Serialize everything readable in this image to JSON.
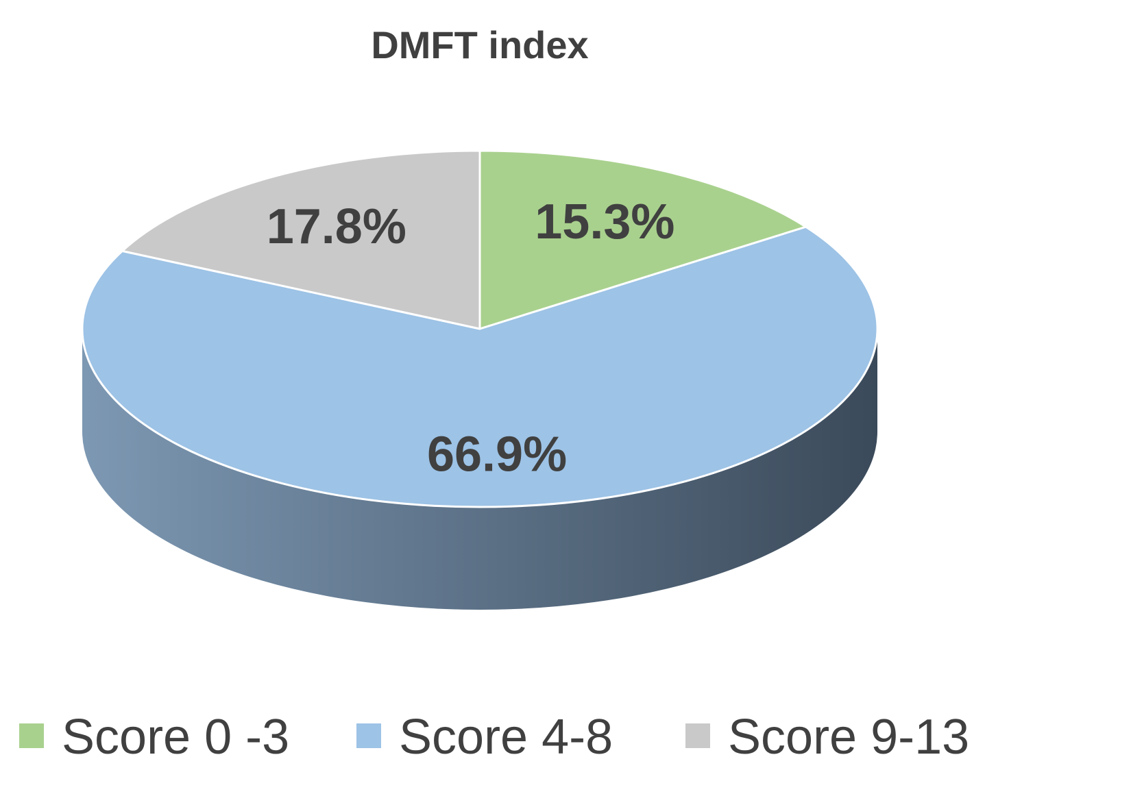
{
  "chart_data": {
    "type": "pie",
    "title": "DMFT index",
    "unit": "%",
    "categories": [
      "Score 0 -3",
      "Score 4-8",
      "Score 9-13"
    ],
    "values": [
      15.3,
      66.9,
      17.8
    ],
    "value_labels": [
      "15.3%",
      "66.9%",
      "17.8%"
    ],
    "colors": [
      "#a9d18e",
      "#9dc3e6",
      "#c9c9c9"
    ],
    "side_colors": {
      "dark": "#3b4a5a",
      "light": "#7d98b3"
    },
    "start_angle_deg": 0,
    "direction": "clockwise",
    "three_d": true,
    "legend_position": "bottom"
  }
}
